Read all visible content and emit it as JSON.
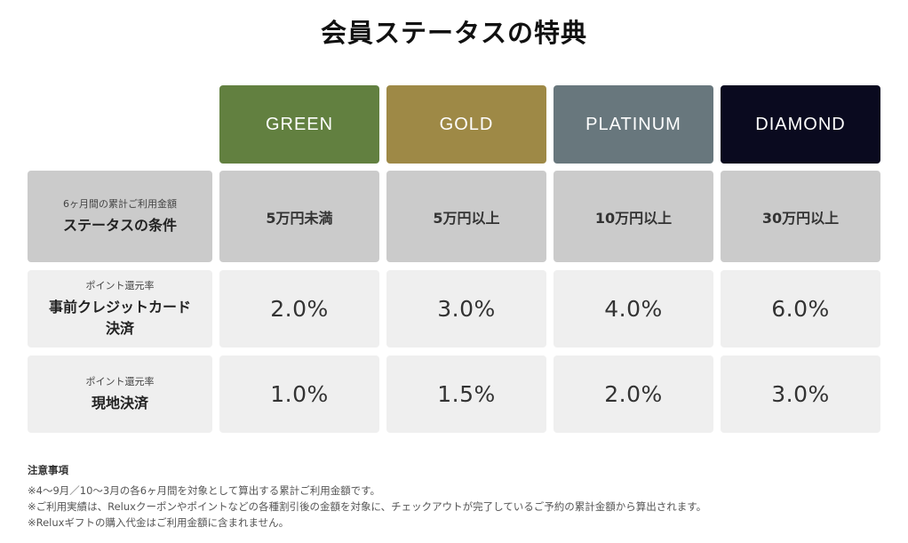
{
  "title": "会員ステータスの特典",
  "colors": {
    "green": "#628040",
    "gold": "#9e8946",
    "platinum": "#68777d",
    "diamond": "#0a0a1f",
    "condition_bg": "#cbcbcb",
    "rate_bg": "#efefef"
  },
  "tiers": [
    "GREEN",
    "GOLD",
    "PLATINUM",
    "DIAMOND"
  ],
  "rows": [
    {
      "sub": "6ヶ月間の累計ご利用金額",
      "main_lines": [
        "ステータスの条件"
      ],
      "values": [
        "5万円未満",
        "5万円以上",
        "10万円以上",
        "30万円以上"
      ]
    },
    {
      "sub": "ポイント還元率",
      "main_lines": [
        "事前クレジットカード",
        "決済"
      ],
      "values": [
        "2.0%",
        "3.0%",
        "4.0%",
        "6.0%"
      ]
    },
    {
      "sub": "ポイント還元率",
      "main_lines": [
        "現地決済"
      ],
      "values": [
        "1.0%",
        "1.5%",
        "2.0%",
        "3.0%"
      ]
    }
  ],
  "notes": {
    "title": "注意事項",
    "items": [
      "※4〜9月／10〜3月の各6ヶ月間を対象として算出する累計ご利用金額です。",
      "※ご利用実績は、Reluxクーポンやポイントなどの各種割引後の金額を対象に、チェックアウトが完了しているご予約の累計金額から算出されます。",
      "※Reluxギフトの購入代金はご利用金額に含まれません。"
    ]
  }
}
